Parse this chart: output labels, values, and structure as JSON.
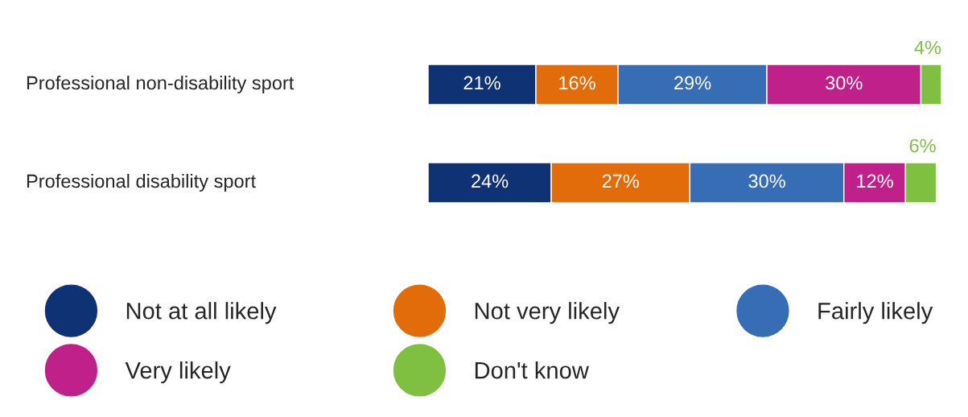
{
  "chart_data": {
    "type": "bar",
    "orientation": "horizontal",
    "stacked": true,
    "legend": "bottom",
    "categories": [
      "Professional non-disability sport",
      "Professional disability sport"
    ],
    "series": [
      {
        "name": "Not at all likely",
        "color": "#0f3275",
        "values": [
          21,
          24
        ],
        "value_labels": [
          "21%",
          "24%"
        ]
      },
      {
        "name": "Not very likely",
        "color": "#e36c0a",
        "values": [
          16,
          27
        ],
        "value_labels": [
          "16%",
          "27%"
        ]
      },
      {
        "name": "Fairly likely",
        "color": "#376db5",
        "values": [
          29,
          30
        ],
        "value_labels": [
          "29%",
          "30%"
        ]
      },
      {
        "name": "Very likely",
        "color": "#c0208a",
        "values": [
          30,
          12
        ],
        "value_labels": [
          "30%",
          "12%"
        ]
      },
      {
        "name": "Don't know",
        "color": "#80c040",
        "values": [
          4,
          6
        ],
        "value_labels": [
          "4%",
          "6%"
        ]
      }
    ]
  }
}
